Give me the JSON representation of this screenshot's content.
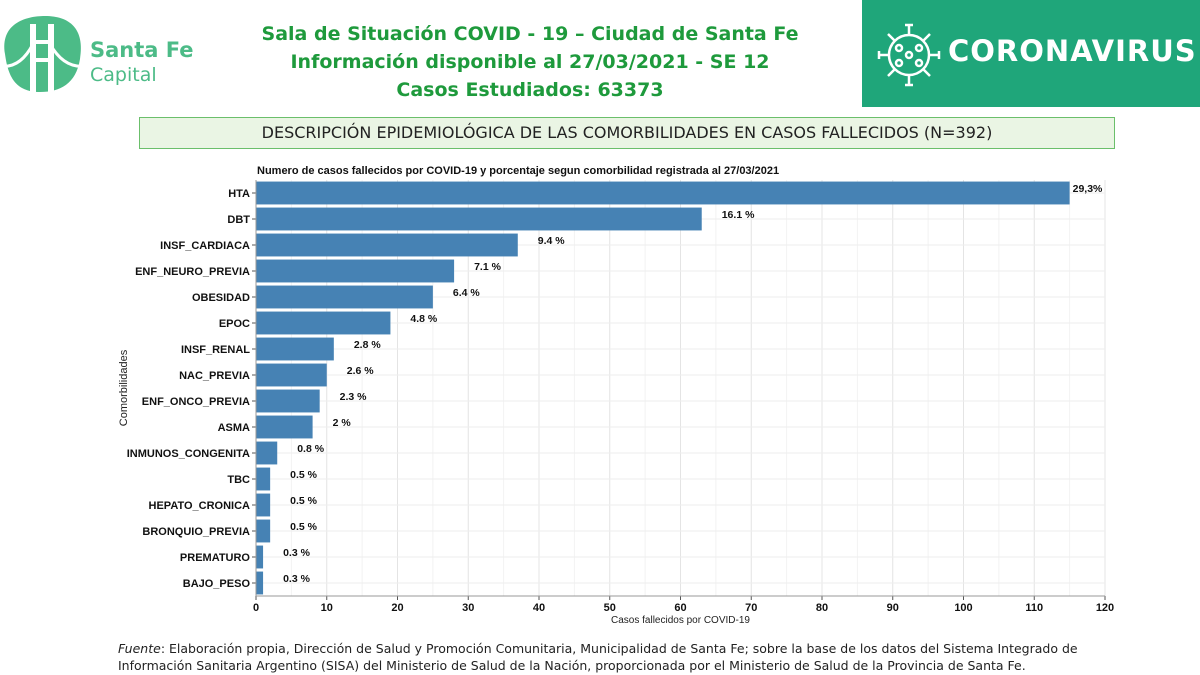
{
  "header": {
    "logo_line1": "Santa Fe",
    "logo_line2": "Capital",
    "title_line1": "Sala de Situación COVID - 19 – Ciudad de Santa Fe",
    "title_line2": "Información disponible al 27/03/2021 - SE 12",
    "title_line3": "Casos Estudiados: 63373",
    "badge": "CORONAVIRUS",
    "badge_icon": "virus-icon"
  },
  "banner": "DESCRIPCIÓN EPIDEMIOLÓGICA DE LAS COMORBILIDADES EN CASOS FALLECIDOS (N=392)",
  "colors": {
    "bar": "#4682b4",
    "brand_green": "#1fa67a",
    "title_green": "#1e9a3c"
  },
  "chart_data": {
    "type": "bar",
    "orientation": "horizontal",
    "title": "Numero de casos fallecidos por COVID-19 y porcentaje segun comorbilidad registrada al 27/03/2021",
    "xlabel": "Casos fallecidos por COVID-19",
    "ylabel": "Comorbilidades",
    "xlim": [
      0,
      120
    ],
    "xticks": [
      0,
      10,
      20,
      30,
      40,
      50,
      60,
      70,
      80,
      90,
      100,
      110,
      120
    ],
    "grid": true,
    "categories": [
      "HTA",
      "DBT",
      "INSF_CARDIACA",
      "ENF_NEURO_PREVIA",
      "OBESIDAD",
      "EPOC",
      "INSF_RENAL",
      "NAC_PREVIA",
      "ENF_ONCO_PREVIA",
      "ASMA",
      "INMUNOS_CONGENITA",
      "TBC",
      "HEPATO_CRONICA",
      "BRONQUIO_PREVIA",
      "PREMATURO",
      "BAJO_PESO"
    ],
    "values": [
      115,
      63,
      37,
      28,
      25,
      19,
      11,
      10,
      9,
      8,
      3,
      2,
      2,
      2,
      1,
      1
    ],
    "labels": [
      "29,3%",
      "16.1 %",
      "9.4 %",
      "7.1 %",
      "6.4 %",
      "4.8 %",
      "2.8 %",
      "2.6 %",
      "2.3 %",
      "2 %",
      "0.8 %",
      "0.5 %",
      "0.5 %",
      "0.5 %",
      "0.3 %",
      "0.3 %"
    ]
  },
  "footer": {
    "source_label": "Fuente",
    "source_text": ": Elaboración propia, Dirección de Salud y Promoción Comunitaria, Municipalidad de Santa Fe; sobre la base de los datos del Sistema Integrado de Información Sanitaria Argentino (SISA) del Ministerio de Salud de la Nación, proporcionada por el Ministerio de Salud de la Provincia de Santa Fe."
  }
}
